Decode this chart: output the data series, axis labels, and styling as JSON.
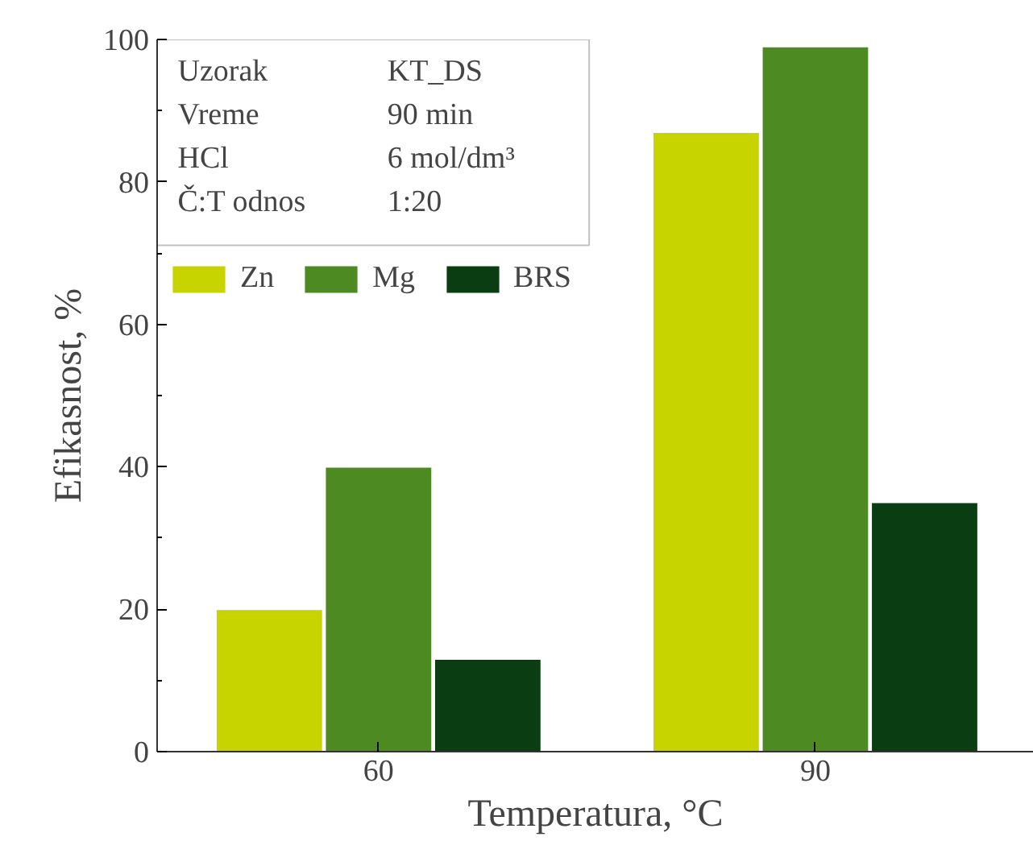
{
  "chart_data": {
    "type": "bar",
    "xlabel": "Temperatura, °C",
    "ylabel": "Efikasnost, %",
    "categories": [
      "60",
      "90"
    ],
    "series": [
      {
        "name": "Zn",
        "color": "#c8d400",
        "values": [
          20,
          87
        ]
      },
      {
        "name": "Mg",
        "color": "#4e8a22",
        "values": [
          40,
          99
        ]
      },
      {
        "name": "BRS",
        "color": "#0b3d12",
        "values": [
          13,
          35
        ]
      }
    ],
    "ylim": [
      0,
      100
    ],
    "yticks": [
      0,
      20,
      40,
      60,
      80,
      100
    ],
    "legend": "top left",
    "grid": false,
    "annotations": [
      "Uzorak",
      "KT_DS",
      "Vreme",
      "90 min",
      "HCl",
      "6 mol/dm³",
      "Č:T odnos",
      "1:20"
    ]
  }
}
